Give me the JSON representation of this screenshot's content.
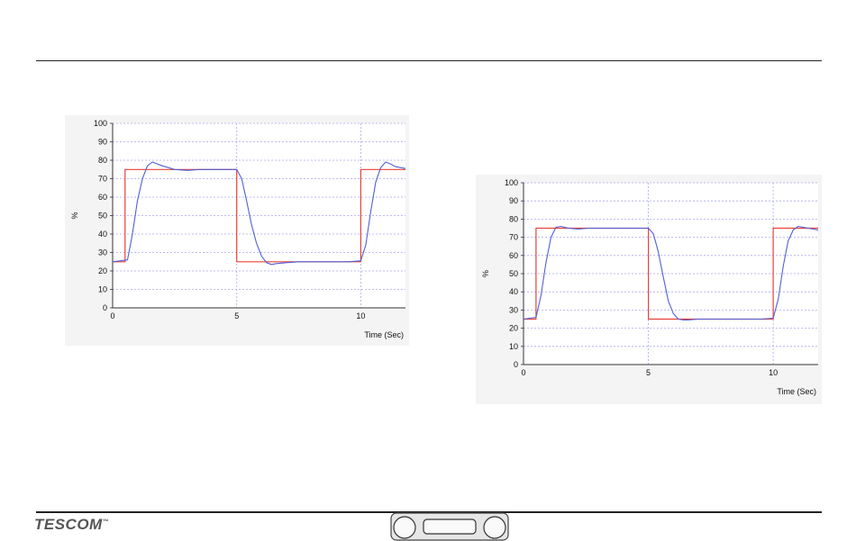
{
  "footer": {
    "logo": "TESCOM",
    "logo_tm": "™"
  },
  "colors": {
    "setpoint": "#e8423a",
    "response": "#5060d8",
    "grid": "#a8a8f0",
    "plot_bg": "#ffffff"
  },
  "chart_data": [
    {
      "type": "line",
      "xlabel": "Time (Sec)",
      "ylabel": "%",
      "xlim": [
        0,
        11.8
      ],
      "ylim": [
        0,
        100
      ],
      "x_ticks": [
        0,
        5,
        10
      ],
      "y_ticks": [
        0,
        10,
        20,
        30,
        40,
        50,
        60,
        70,
        80,
        90,
        100
      ],
      "grid": true,
      "series": [
        {
          "color": "#e8423a",
          "x": [
            0,
            0.5,
            0.5,
            5.0,
            5.0,
            10.0,
            10.0,
            11.8
          ],
          "y": [
            25,
            25,
            75,
            75,
            25,
            25,
            75,
            75
          ]
        },
        {
          "color": "#5060d8",
          "x": [
            0,
            0.6,
            0.8,
            1.0,
            1.2,
            1.4,
            1.6,
            2.0,
            2.5,
            3.0,
            3.5,
            4.0,
            4.5,
            4.8,
            5.0,
            5.2,
            5.4,
            5.6,
            5.8,
            6.0,
            6.2,
            6.4,
            6.6,
            7.0,
            7.5,
            8.0,
            8.5,
            9.0,
            9.5,
            10.0,
            10.2,
            10.4,
            10.6,
            10.8,
            11.0,
            11.2,
            11.4,
            11.8
          ],
          "y": [
            25,
            26,
            40,
            58,
            70,
            77,
            79,
            77,
            75,
            74.5,
            75,
            75,
            75,
            75,
            75,
            70,
            58,
            45,
            35,
            28,
            24.5,
            23.5,
            24,
            24.5,
            25,
            25,
            25,
            25,
            25,
            25.5,
            34,
            52,
            68,
            76,
            79,
            78,
            76.5,
            75.5
          ]
        }
      ]
    },
    {
      "type": "line",
      "xlabel": "Time (Sec)",
      "ylabel": "%",
      "xlim": [
        0,
        11.8
      ],
      "ylim": [
        0,
        100
      ],
      "x_ticks": [
        0,
        5,
        10
      ],
      "y_ticks": [
        0,
        10,
        20,
        30,
        40,
        50,
        60,
        70,
        80,
        90,
        100
      ],
      "grid": true,
      "series": [
        {
          "color": "#e8423a",
          "x": [
            0,
            0.5,
            0.5,
            5.0,
            5.0,
            10.0,
            10.0,
            11.8
          ],
          "y": [
            25,
            25,
            75,
            75,
            25,
            25,
            75,
            75
          ]
        },
        {
          "color": "#5060d8",
          "x": [
            0,
            0.5,
            0.7,
            0.9,
            1.1,
            1.3,
            1.5,
            1.8,
            2.2,
            2.6,
            3.0,
            3.5,
            4.0,
            4.5,
            5.0,
            5.2,
            5.4,
            5.6,
            5.8,
            6.0,
            6.2,
            6.4,
            6.6,
            7.0,
            7.5,
            8.0,
            8.5,
            9.0,
            9.5,
            10.0,
            10.2,
            10.4,
            10.6,
            10.8,
            11.0,
            11.2,
            11.4,
            11.8
          ],
          "y": [
            25,
            26,
            38,
            56,
            70,
            75.5,
            76,
            75,
            74.5,
            75,
            75,
            75,
            75,
            75,
            75,
            72,
            62,
            48,
            35,
            28,
            25,
            24.5,
            24.5,
            25,
            25,
            25,
            25,
            25,
            25,
            25.5,
            36,
            54,
            68,
            74,
            76,
            75.5,
            75,
            74
          ]
        }
      ]
    }
  ]
}
